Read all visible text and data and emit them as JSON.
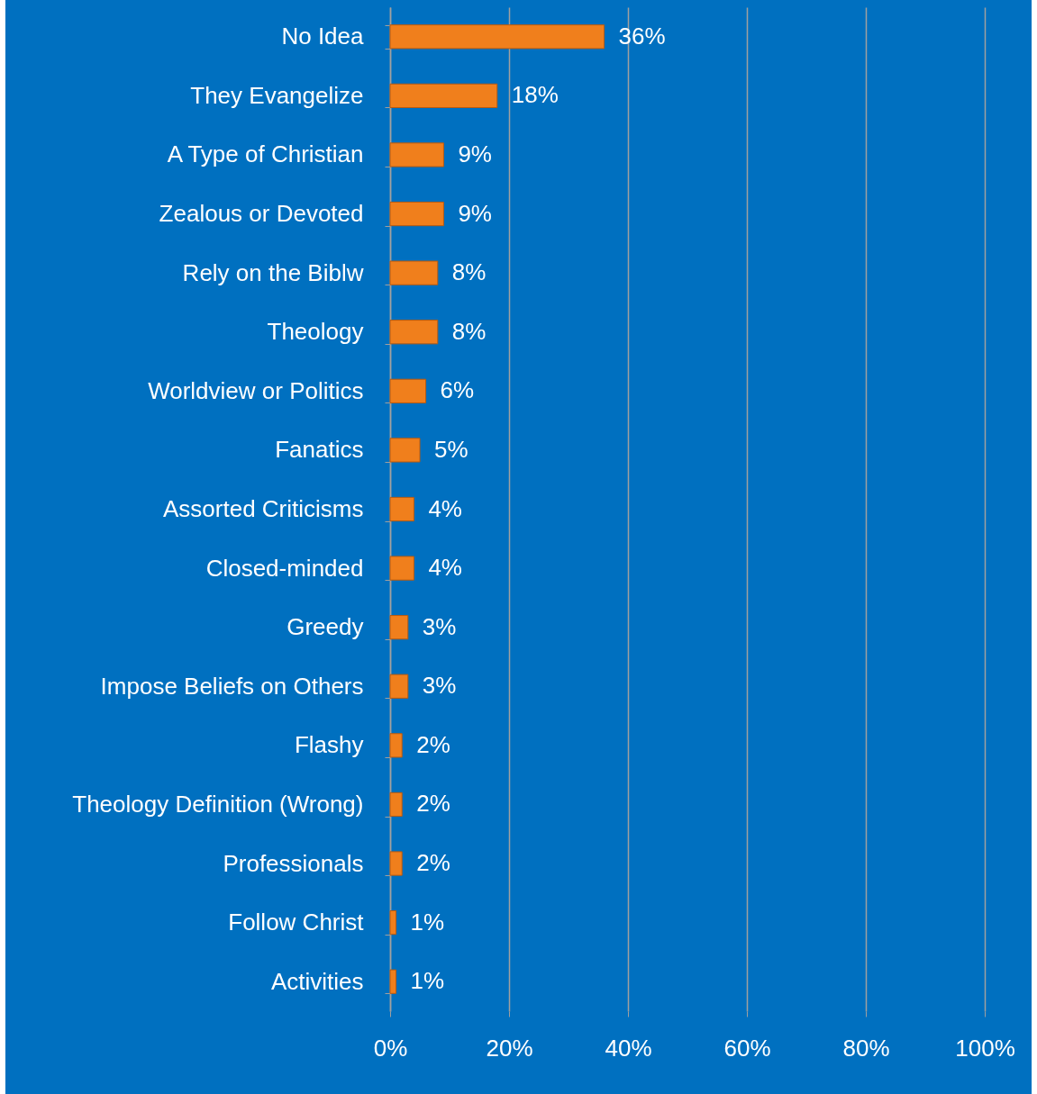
{
  "chart_data": {
    "type": "bar",
    "orientation": "horizontal",
    "categories": [
      "No Idea",
      "They Evangelize",
      "A Type of Christian",
      "Zealous or Devoted",
      "Rely on the Biblw",
      "Theology",
      "Worldview or Politics",
      "Fanatics",
      "Assorted Criticisms",
      "Closed-minded",
      "Greedy",
      "Impose Beliefs on Others",
      "Flashy",
      "Theology Definition (Wrong)",
      "Professionals",
      "Follow Christ",
      "Activities"
    ],
    "values": [
      36,
      18,
      9,
      9,
      8,
      8,
      6,
      5,
      4,
      4,
      3,
      3,
      2,
      2,
      2,
      1,
      1
    ],
    "value_labels": [
      "36%",
      "18%",
      "9%",
      "9%",
      "8%",
      "8%",
      "6%",
      "5%",
      "4%",
      "4%",
      "3%",
      "3%",
      "2%",
      "2%",
      "2%",
      "1%",
      "1%"
    ],
    "color": "#f07f1c",
    "xlim": [
      0,
      100
    ],
    "xticks": [
      {
        "value": 0,
        "label": "0%"
      },
      {
        "value": 20,
        "label": "20%"
      },
      {
        "value": 40,
        "label": "40%"
      },
      {
        "value": 60,
        "label": "60%"
      },
      {
        "value": 80,
        "label": "80%"
      },
      {
        "value": 100,
        "label": "100%"
      }
    ],
    "grid": "x"
  }
}
